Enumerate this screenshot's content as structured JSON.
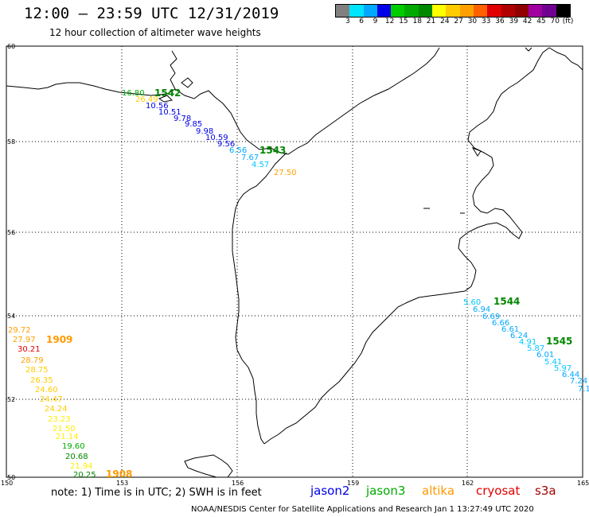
{
  "header": {
    "title": "12:00 – 23:59 UTC 12/31/2019",
    "subtitle": "12 hour collection of altimeter wave heights"
  },
  "colorbar": {
    "labels": [
      "3",
      "6",
      "9",
      "12",
      "15",
      "18",
      "21",
      "24",
      "27",
      "30",
      "33",
      "36",
      "39",
      "42",
      "45",
      "70",
      "(ft)"
    ],
    "colors": [
      "#808080",
      "#00e5ff",
      "#00a8ff",
      "#0000e6",
      "#00cc00",
      "#00aa00",
      "#008800",
      "#ffff00",
      "#ffcc00",
      "#ffa000",
      "#ff6000",
      "#e00000",
      "#b00000",
      "#900000",
      "#a000a0",
      "#700090",
      "#000000"
    ]
  },
  "map": {
    "lat_labels": [
      "60",
      "58",
      "56",
      "54",
      "52",
      "50"
    ],
    "lon_labels": [
      "150",
      "153",
      "156",
      "159",
      "162",
      "165"
    ]
  },
  "tracks": [
    {
      "id": "1542",
      "color": "#008800",
      "points": [
        {
          "t": "16.80",
          "c": "#00aa00"
        },
        {
          "t": "26.49",
          "c": "#ffcc00"
        },
        {
          "t": "10.56",
          "c": "#0000e6"
        },
        {
          "t": "10.51",
          "c": "#0000e6"
        },
        {
          "t": "9.78",
          "c": "#0000e6"
        },
        {
          "t": "9.85",
          "c": "#0000e6"
        },
        {
          "t": "9.98",
          "c": "#0000e6"
        },
        {
          "t": "10.59",
          "c": "#0000e6"
        },
        {
          "t": "9.56",
          "c": "#0000e6"
        },
        {
          "t": "6.56",
          "c": "#00a8ff"
        }
      ]
    },
    {
      "id": "1543",
      "color": "#008800",
      "points": [
        {
          "t": "7.67",
          "c": "#00a8ff"
        },
        {
          "t": "4.57",
          "c": "#00c8ff"
        },
        {
          "t": "27.50",
          "c": "#ffa000"
        }
      ]
    },
    {
      "id": "1544",
      "color": "#008800",
      "points": [
        {
          "t": "5.60",
          "c": "#00c8ff"
        },
        {
          "t": "6.94",
          "c": "#00a8ff"
        },
        {
          "t": "6.69",
          "c": "#00a8ff"
        },
        {
          "t": "6.66",
          "c": "#00a8ff"
        },
        {
          "t": "6.61",
          "c": "#00a8ff"
        },
        {
          "t": "6.24",
          "c": "#00a8ff"
        },
        {
          "t": "4.91",
          "c": "#00c8ff"
        },
        {
          "t": "5.87",
          "c": "#00c8ff"
        },
        {
          "t": "6.01",
          "c": "#00a8ff"
        }
      ]
    },
    {
      "id": "1545",
      "color": "#008800",
      "points": [
        {
          "t": "5.41",
          "c": "#00c8ff"
        },
        {
          "t": "5.97",
          "c": "#00c8ff"
        },
        {
          "t": "6.44",
          "c": "#00a8ff"
        },
        {
          "t": "7.24",
          "c": "#00a8ff"
        },
        {
          "t": "7.1",
          "c": "#00a8ff"
        }
      ]
    },
    {
      "id": "1909",
      "color": "#ff9900",
      "points": [
        {
          "t": "29.72",
          "c": "#ffa000"
        },
        {
          "t": "27.97",
          "c": "#ffa000"
        },
        {
          "t": "30.21",
          "c": "#e00000"
        },
        {
          "t": "28.79",
          "c": "#ffa000"
        },
        {
          "t": "28.75",
          "c": "#ffcc00"
        },
        {
          "t": "26.35",
          "c": "#ffcc00"
        },
        {
          "t": "24.60",
          "c": "#ffcc00"
        },
        {
          "t": "24.47",
          "c": "#ffcc00"
        },
        {
          "t": "24.24",
          "c": "#ffcc00"
        },
        {
          "t": "23.23",
          "c": "#ffee00"
        },
        {
          "t": "21.50",
          "c": "#ffee00"
        },
        {
          "t": "21.14",
          "c": "#ffee00"
        },
        {
          "t": "19.60",
          "c": "#00aa00"
        },
        {
          "t": "20.68",
          "c": "#008800"
        },
        {
          "t": "21.94",
          "c": "#ffee00"
        },
        {
          "t": "20.25",
          "c": "#008800"
        }
      ]
    },
    {
      "id": "1908",
      "color": "#ff9900",
      "points": []
    }
  ],
  "footer": {
    "note": "note:  1) Time is in UTC;  2) SWH is in feet",
    "legend": [
      {
        "name": "jason2",
        "color": "#0000e6"
      },
      {
        "name": "jason3",
        "color": "#00aa00"
      },
      {
        "name": "altika",
        "color": "#ff9900"
      },
      {
        "name": "cryosat",
        "color": "#e00000"
      },
      {
        "name": "s3a",
        "color": "#a00000"
      }
    ],
    "credit": "NOAA/NESDIS Center for Satellite Applications and Research    Jan  1 13:27:49 UTC 2020"
  }
}
